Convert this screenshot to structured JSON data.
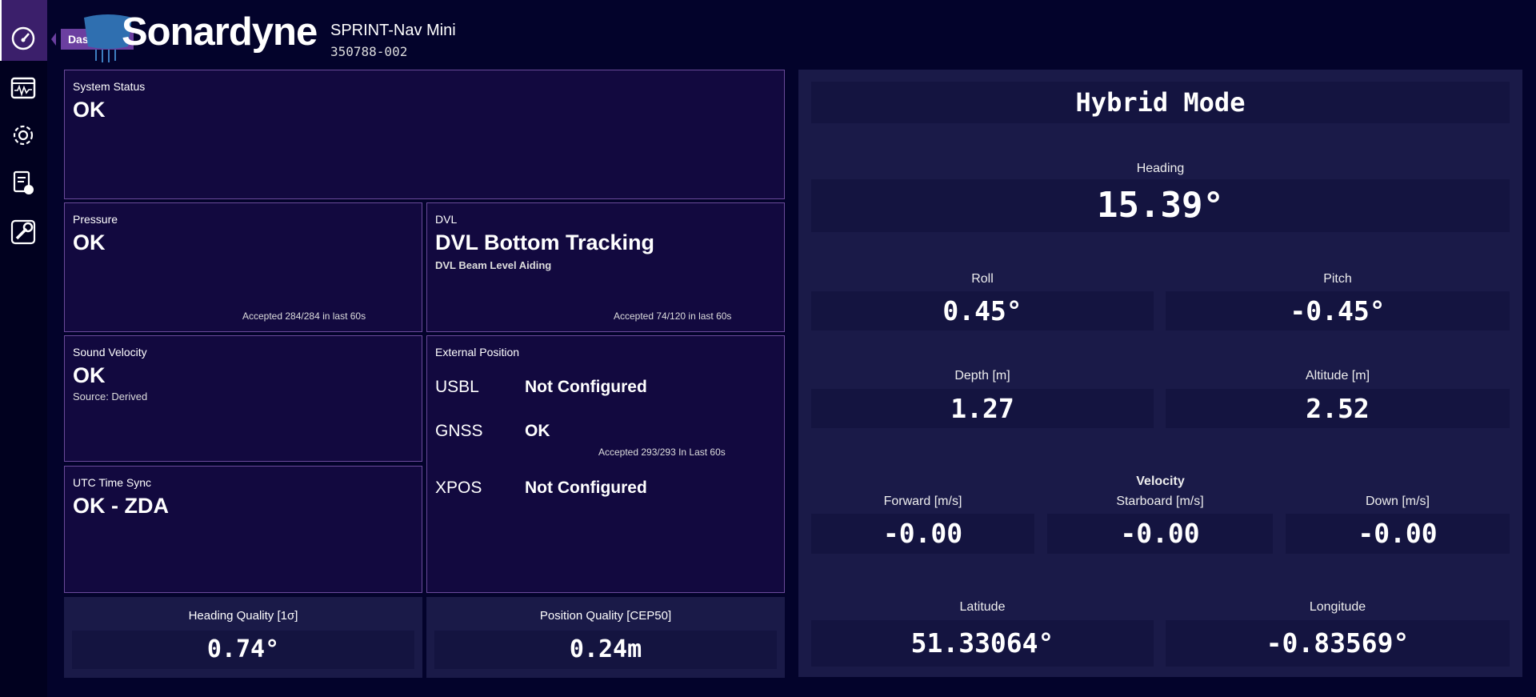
{
  "sidebar": {
    "tooltip": "Dashboard"
  },
  "header": {
    "logo": "Sonardyne",
    "product": "SPRINT-Nav Mini",
    "serial": "350788-002"
  },
  "status": {
    "system": {
      "label": "System Status",
      "value": "OK"
    },
    "pressure": {
      "label": "Pressure",
      "value": "OK",
      "note": "Accepted 284/284 in last 60s"
    },
    "dvl": {
      "label": "DVL",
      "value": "DVL Bottom Tracking",
      "detail": "DVL Beam Level Aiding",
      "note": "Accepted 74/120 in last 60s"
    },
    "sound_velocity": {
      "label": "Sound Velocity",
      "value": "OK",
      "detail": "Source: Derived"
    },
    "utc": {
      "label": "UTC Time Sync",
      "value": "OK - ZDA"
    },
    "external_position": {
      "label": "External Position",
      "rows": [
        {
          "name": "USBL",
          "status": "Not Configured"
        },
        {
          "name": "GNSS",
          "status": "OK",
          "note": "Accepted 293/293 In Last 60s"
        },
        {
          "name": "XPOS",
          "status": "Not Configured"
        }
      ]
    }
  },
  "quality": [
    {
      "label": "Heading Quality [1σ]",
      "value": "0.74°"
    },
    {
      "label": "Position Quality [CEP50]",
      "value": "0.24m"
    }
  ],
  "nav": {
    "title": "Hybrid Mode",
    "heading": {
      "label": "Heading",
      "value": "15.39°"
    },
    "roll": {
      "label": "Roll",
      "value": "0.45°"
    },
    "pitch": {
      "label": "Pitch",
      "value": "-0.45°"
    },
    "depth": {
      "label": "Depth [m]",
      "value": "1.27"
    },
    "altitude": {
      "label": "Altitude [m]",
      "value": "2.52"
    },
    "velocity": {
      "title": "Velocity",
      "items": [
        {
          "label": "Forward [m/s]",
          "value": "-0.00"
        },
        {
          "label": "Starboard [m/s]",
          "value": "-0.00"
        },
        {
          "label": "Down [m/s]",
          "value": "-0.00"
        }
      ]
    },
    "latitude": {
      "label": "Latitude",
      "value": "51.33064°"
    },
    "longitude": {
      "label": "Longitude",
      "value": "-0.83569°"
    }
  }
}
